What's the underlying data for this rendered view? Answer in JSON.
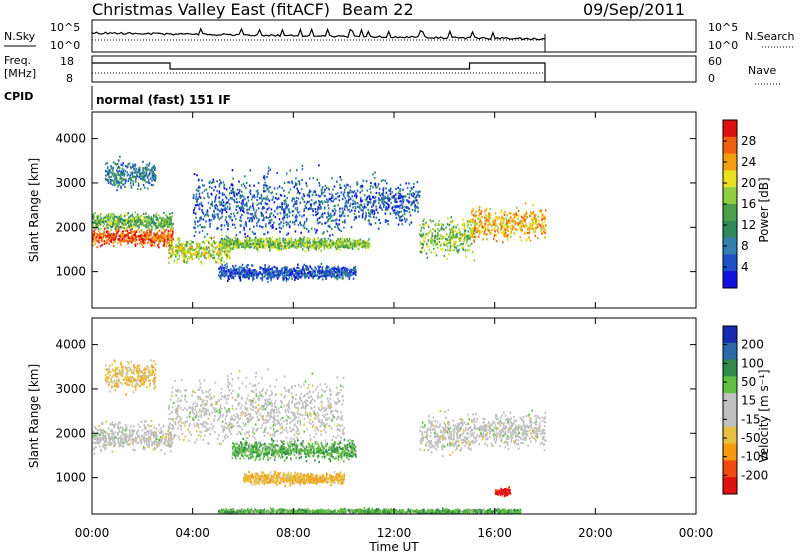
{
  "header": {
    "title": "Christmas Valley East (fitACF)",
    "beam": "Beam 22",
    "date": "09/Sep/2011"
  },
  "top_panels": {
    "nsky_label": "N.Sky",
    "nsky_ticks": [
      "10^5",
      "10^0"
    ],
    "nsearch_label": "N.Search",
    "right_nsky_ticks": [
      "10^5",
      "10^0"
    ],
    "freq_label_1": "Freq.",
    "freq_label_2": "[MHz]",
    "freq_ticks": [
      "18",
      "8"
    ],
    "nave_label": "Nave",
    "nave_ticks": [
      "60",
      "0"
    ],
    "cpid_label": "CPID",
    "cpid_value": "normal (fast) 151 IF"
  },
  "colors": {
    "power_scale": [
      "#1010e0",
      "#2050c8",
      "#2f7fb0",
      "#2f8a5a",
      "#4aa04a",
      "#8fce40",
      "#e8e020",
      "#f3a010",
      "#f06010",
      "#e01010"
    ],
    "velocity_scale": [
      "#e01010",
      "#f04a10",
      "#f59a10",
      "#e6c040",
      "#c0c0c0",
      "#c0c0c0",
      "#60c040",
      "#2f8a4a",
      "#2a6aa8",
      "#1a2ab0"
    ],
    "ground_scatter": "#bebebe"
  },
  "chart_data": [
    {
      "type": "heatmap",
      "name": "power",
      "ylabel": "Slant Range [km]",
      "y_ticks": [
        "1000",
        "2000",
        "3000",
        "4000"
      ],
      "ylim": [
        180,
        4600
      ],
      "colorbar_label": "Power [dB]",
      "colorbar_ticks": [
        "4",
        "8",
        "12",
        "16",
        "20",
        "24",
        "28"
      ],
      "colorbar_range": [
        0,
        30
      ],
      "features": [
        {
          "t0": 0.0,
          "t1": 3.2,
          "r": 1800,
          "dr": 180,
          "level": 26
        },
        {
          "t0": 0.0,
          "t1": 3.2,
          "r": 2150,
          "dr": 160,
          "level": 14
        },
        {
          "t0": 0.5,
          "t1": 2.5,
          "r": 3200,
          "dr": 300,
          "level": 8
        },
        {
          "t0": 3.0,
          "t1": 5.5,
          "r": 1500,
          "dr": 250,
          "level": 18
        },
        {
          "t0": 4.0,
          "t1": 10.0,
          "r": 2500,
          "dr": 700,
          "level": 6
        },
        {
          "t0": 5.0,
          "t1": 11.0,
          "r": 1650,
          "dr": 120,
          "level": 16
        },
        {
          "t0": 5.0,
          "t1": 10.5,
          "r": 1000,
          "dr": 150,
          "level": 5
        },
        {
          "t0": 10.0,
          "t1": 13.0,
          "r": 2600,
          "dr": 500,
          "level": 6
        },
        {
          "t0": 13.0,
          "t1": 15.2,
          "r": 1800,
          "dr": 400,
          "level": 16
        },
        {
          "t0": 15.0,
          "t1": 18.0,
          "r": 2100,
          "dr": 350,
          "level": 22
        }
      ]
    },
    {
      "type": "heatmap",
      "name": "velocity",
      "ylabel": "Slant Range [km]",
      "y_ticks": [
        "1000",
        "2000",
        "3000",
        "4000"
      ],
      "ylim": [
        180,
        4600
      ],
      "xlabel": "Time UT",
      "x_ticks": [
        "00:00",
        "04:00",
        "08:00",
        "12:00",
        "16:00",
        "20:00",
        "00:00"
      ],
      "xlim": [
        0,
        24
      ],
      "colorbar_label": "Velocity [m s⁻¹]",
      "colorbar_ticks": [
        "200",
        "100",
        "50",
        "15",
        "-15",
        "-50",
        "-100",
        "-200"
      ],
      "colorbar_range": [
        -250,
        250
      ],
      "features": [
        {
          "t0": 0.0,
          "t1": 3.2,
          "r": 1950,
          "dr": 300,
          "vel": 0
        },
        {
          "t0": 0.5,
          "t1": 2.5,
          "r": 3300,
          "dr": 300,
          "vel": -30
        },
        {
          "t0": 3.0,
          "t1": 10.0,
          "r": 2500,
          "dr": 700,
          "vel": 0
        },
        {
          "t0": 5.5,
          "t1": 10.5,
          "r": 1650,
          "dr": 200,
          "vel": 40
        },
        {
          "t0": 6.0,
          "t1": 10.0,
          "r": 1000,
          "dr": 120,
          "vel": -40
        },
        {
          "t0": 13.0,
          "t1": 15.0,
          "r": 2000,
          "dr": 400,
          "vel": 0
        },
        {
          "t0": 15.0,
          "t1": 18.0,
          "r": 2100,
          "dr": 350,
          "vel": 0
        },
        {
          "t0": 16.0,
          "t1": 16.6,
          "r": 700,
          "dr": 80,
          "vel": -220
        },
        {
          "t0": 5.0,
          "t1": 17.0,
          "r": 250,
          "dr": 60,
          "vel": 40
        }
      ]
    }
  ]
}
